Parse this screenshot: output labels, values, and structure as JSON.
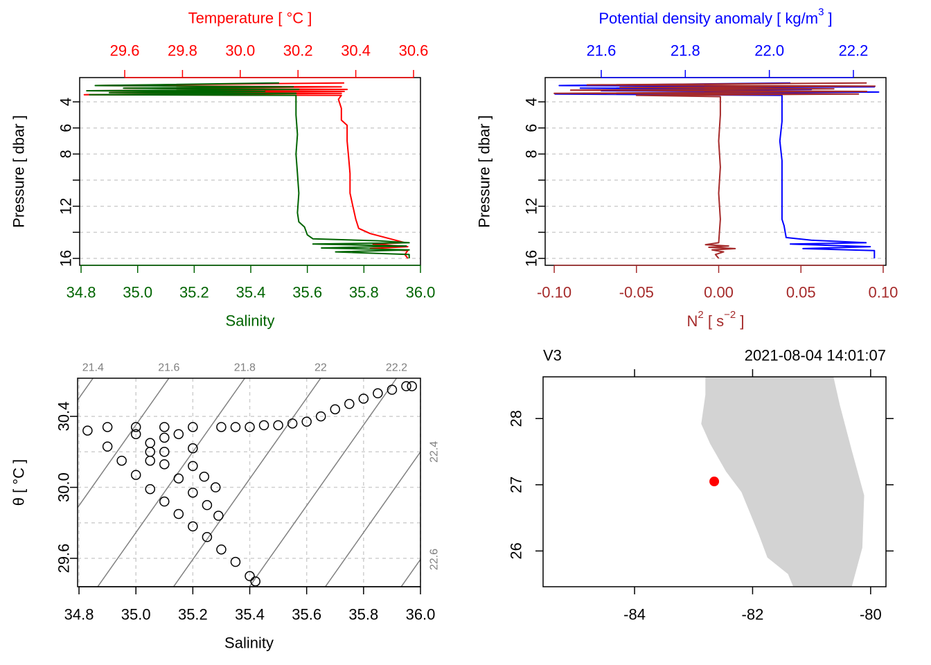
{
  "chart_data": [
    {
      "type": "profile",
      "x2label": "Temperature [ °C ]",
      "xlabel": "Salinity",
      "ylabel": "Pressure [ dbar ]",
      "xlim": [
        34.795,
        36.0
      ],
      "xticks": [
        34.8,
        {
          "value": 35,
          "label": "35.0"
        },
        35.2,
        35.4,
        35.6,
        35.8,
        {
          "value": 36,
          "label": "36.0"
        }
      ],
      "x2lim": [
        29.444,
        30.624
      ],
      "x2ticks": [
        29.6,
        29.8,
        {
          "value": 30,
          "label": "30.0"
        },
        30.2,
        30.4,
        30.6
      ],
      "ylim": [
        2.14,
        16.53
      ],
      "y_reversed": true,
      "yticks": [
        4,
        6,
        8,
        12,
        16
      ],
      "ygrid": [
        4,
        6,
        8,
        10,
        12,
        14,
        16
      ],
      "series": [
        {
          "color": "#ff0000",
          "axis": "x2",
          "x": [
            30.36,
            29.5,
            30.35,
            29.6,
            30.37,
            29.48,
            30.36,
            29.55,
            30.35,
            29.46,
            30.35,
            30.34,
            30.35,
            30.35,
            30.37,
            30.37,
            30.375,
            30.38,
            30.38,
            30.39,
            30.4,
            30.41,
            30.45,
            30.52,
            30.57,
            30.46,
            30.58,
            30.45,
            30.58,
            30.57,
            30.58
          ],
          "values": [
            2.55,
            2.75,
            2.85,
            2.95,
            3.05,
            3.15,
            3.2,
            3.3,
            3.35,
            3.45,
            3.5,
            3.8,
            4.5,
            5.4,
            5.8,
            7.0,
            8.2,
            9.5,
            11.0,
            12.0,
            13.0,
            13.7,
            14.1,
            14.5,
            14.8,
            14.9,
            15.1,
            15.25,
            15.4,
            15.7,
            16.0
          ]
        },
        {
          "color": "#006400",
          "axis": "x",
          "x": [
            35.5,
            34.85,
            35.55,
            34.95,
            35.57,
            34.82,
            35.45,
            34.9,
            35.56,
            34.83,
            35.56,
            35.56,
            35.56,
            35.565,
            35.56,
            35.565,
            35.57,
            35.565,
            35.57,
            35.59,
            35.6,
            35.62,
            35.85,
            35.96,
            35.62,
            35.95,
            35.65,
            35.96,
            35.7,
            35.96,
            35.96
          ],
          "values": [
            2.55,
            2.75,
            2.85,
            2.95,
            3.05,
            3.15,
            3.2,
            3.3,
            3.35,
            3.45,
            3.5,
            4.0,
            5.0,
            6.5,
            8.0,
            9.5,
            11.0,
            12.5,
            13.2,
            13.6,
            14.2,
            14.5,
            14.65,
            14.8,
            14.9,
            15.05,
            15.2,
            15.35,
            15.5,
            15.7,
            16.0
          ]
        }
      ]
    },
    {
      "type": "profile",
      "x2label": [
        {
          "text": "Potential density anomaly [ kg/m"
        },
        {
          "text": "3",
          "sup": true
        },
        {
          "text": " ]"
        }
      ],
      "xlabel": [
        {
          "text": "N"
        },
        {
          "text": "2",
          "sup": true
        },
        {
          "text": " [ s"
        },
        {
          "text": "−2",
          "sup": true
        },
        {
          "text": " ]"
        }
      ],
      "ylabel": "Pressure [ dbar ]",
      "xlim": [
        -0.1055,
        0.1017
      ],
      "xticks": [
        {
          "value": -0.1,
          "label": "-0.10"
        },
        -0.05,
        {
          "value": 0,
          "label": "0.00"
        },
        0.05,
        {
          "value": 0.1,
          "label": "0.10"
        }
      ],
      "x2lim": [
        21.4665,
        22.2775
      ],
      "x2ticks": [
        21.6,
        21.8,
        {
          "value": 22,
          "label": "22.0"
        },
        22.2
      ],
      "ylim": [
        2.14,
        16.53
      ],
      "y_reversed": true,
      "yticks": [
        4,
        6,
        8,
        12,
        16
      ],
      "ygrid": [
        4,
        6,
        8,
        10,
        12,
        14,
        16
      ],
      "series": [
        {
          "color": "#0000ff",
          "axis": "x2",
          "x": [
            22.05,
            21.5,
            22.25,
            21.55,
            22.1,
            21.6,
            22.26,
            21.49,
            22.03,
            22.03,
            22.03,
            22.025,
            22.03,
            22.03,
            22.03,
            22.03,
            22.035,
            22.04,
            22.1,
            22.23,
            22.05,
            22.24,
            22.08,
            22.25,
            22.25,
            22.25
          ],
          "values": [
            2.55,
            2.75,
            2.85,
            2.95,
            3.05,
            3.15,
            3.25,
            3.4,
            3.5,
            4.0,
            5.5,
            7.0,
            8.5,
            10.0,
            11.5,
            13.0,
            13.5,
            14.4,
            14.6,
            14.8,
            14.9,
            15.1,
            15.25,
            15.4,
            15.7,
            16.0
          ]
        },
        {
          "color": "#a52a2a",
          "axis": "x",
          "x": [
            0.09,
            -0.08,
            0.095,
            -0.06,
            0.07,
            -0.09,
            0.09,
            -0.1,
            0.085,
            -0.05,
            0.001,
            0.001,
            0.0,
            0.001,
            0.0,
            0.001,
            0.0,
            -0.008,
            0.006,
            -0.006,
            0.01,
            -0.004,
            0.003,
            -0.002,
            0.0
          ],
          "values": [
            2.55,
            2.7,
            2.8,
            2.9,
            3.0,
            3.1,
            3.2,
            3.35,
            3.4,
            3.5,
            3.6,
            5.0,
            7.0,
            9.0,
            11.0,
            13.0,
            14.8,
            14.95,
            15.05,
            15.15,
            15.25,
            15.35,
            15.5,
            15.7,
            16.0
          ]
        }
      ]
    },
    {
      "type": "scatter",
      "xlabel": "Salinity",
      "ylabel": "θ [ °C ]",
      "color": "#000000",
      "xlim": [
        34.795,
        36.0
      ],
      "xticks": [
        34.8,
        {
          "value": 35,
          "label": "35.0"
        },
        35.2,
        35.4,
        35.6,
        35.8,
        {
          "value": 36,
          "label": "36.0"
        }
      ],
      "ylim": [
        29.44,
        30.615
      ],
      "yticks": [
        29.6,
        {
          "value": 30,
          "label": "30.0"
        },
        30.4
      ],
      "xgrid": [
        34.8,
        35.0,
        35.2,
        35.4,
        35.6,
        35.8,
        36.0
      ],
      "ygrid": [
        29.6,
        29.8,
        30.0,
        30.2,
        30.4
      ],
      "isopycnals": [
        21.4,
        21.6,
        21.8,
        22,
        22.2,
        22.4,
        22.6
      ],
      "isopycnal_color": "#808080",
      "x": [
        35.5,
        35.55,
        35.6,
        35.65,
        35.7,
        35.75,
        35.8,
        35.85,
        35.9,
        35.95,
        35.97,
        34.83,
        34.9,
        35.0,
        35.1,
        35.2,
        35.3,
        35.35,
        35.4,
        35.45,
        35.0,
        35.05,
        35.1,
        35.15,
        35.1,
        35.2,
        35.05,
        34.9,
        34.95,
        35.0,
        35.05,
        35.1,
        35.15,
        35.2,
        35.25,
        35.3,
        35.35,
        35.4,
        35.42,
        35.05,
        35.1,
        35.15,
        35.2,
        35.25,
        35.29,
        35.2,
        35.24,
        35.28
      ],
      "values": [
        30.35,
        30.36,
        30.37,
        30.4,
        30.44,
        30.47,
        30.5,
        30.53,
        30.55,
        30.57,
        30.57,
        30.32,
        30.34,
        30.34,
        30.34,
        30.34,
        30.34,
        30.34,
        30.34,
        30.35,
        30.3,
        30.25,
        30.28,
        30.3,
        30.2,
        30.22,
        30.15,
        30.23,
        30.15,
        30.07,
        29.99,
        29.92,
        29.85,
        29.78,
        29.72,
        29.65,
        29.58,
        29.5,
        29.47,
        30.2,
        30.13,
        30.05,
        29.97,
        29.9,
        29.84,
        30.12,
        30.06,
        30.0
      ]
    },
    {
      "type": "map",
      "title": "V3",
      "subtitle": "2021-08-04 14:01:07",
      "xlim": [
        -85.55,
        -79.74
      ],
      "xticks": [
        -84,
        -82,
        -80
      ],
      "ylim": [
        25.46,
        28.63
      ],
      "yticks": [
        26,
        27,
        28
      ],
      "land": {
        "color": "#d3d3d3",
        "lon": [
          -82.8,
          -80.63,
          -80.52,
          -80.32,
          -80.11,
          -80.14,
          -80.32,
          -81.31,
          -81.4,
          -81.75,
          -81.9,
          -82.19,
          -82.45,
          -82.72,
          -82.87,
          -82.8
        ],
        "lat": [
          28.63,
          28.63,
          28.2,
          27.52,
          26.84,
          26.05,
          25.46,
          25.46,
          25.65,
          25.9,
          26.26,
          26.89,
          27.2,
          27.62,
          27.92,
          28.36
        ]
      },
      "station": {
        "color": "#ff0000",
        "lon": -82.65,
        "lat": 27.05
      }
    }
  ]
}
